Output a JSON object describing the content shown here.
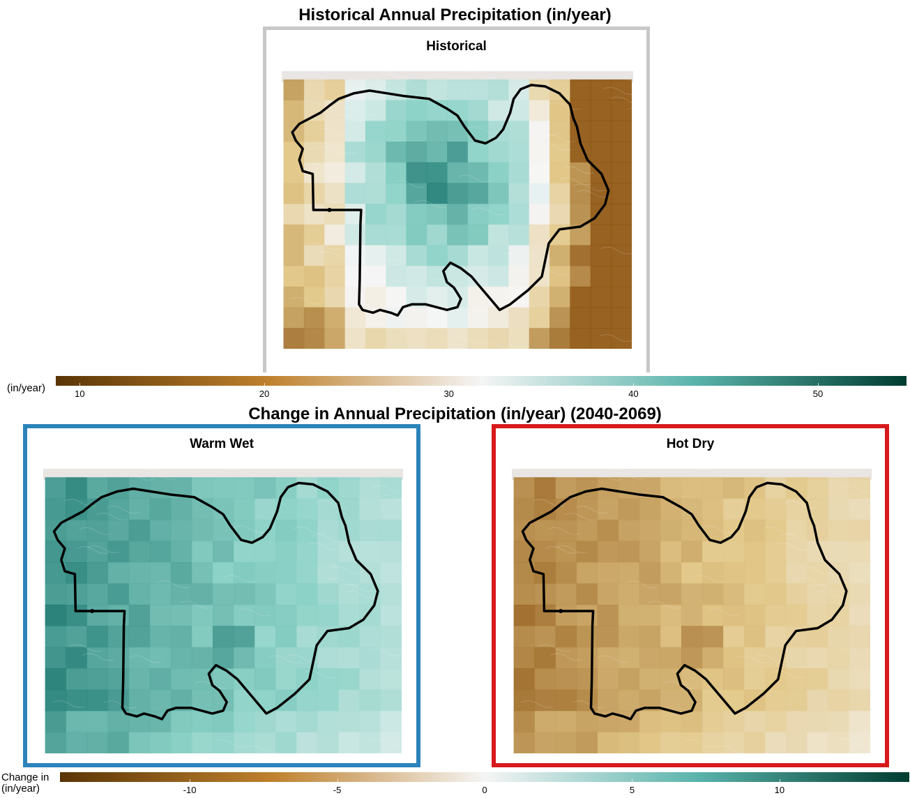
{
  "historical": {
    "title": "Historical Annual Precipitation (in/year)",
    "panel_label": "Historical",
    "frame_color": "#c8c8c8"
  },
  "historical_legend": {
    "label": "(in/year)",
    "ticks": [
      "10",
      "20",
      "30",
      "40",
      "50"
    ],
    "range": [
      8.7,
      54.8
    ],
    "colors": [
      "#5a3505",
      "#bf812d",
      "#f5f5f5",
      "#5ab4ac",
      "#003c30"
    ]
  },
  "change": {
    "title": "Change in Annual Precipitation (in/year) (2040-2069)",
    "warm_wet": {
      "label": "Warm Wet",
      "frame_color": "#2b83ba"
    },
    "hot_dry": {
      "label": "Hot Dry",
      "frame_color": "#d7191c"
    }
  },
  "change_legend": {
    "label_line1": "Change in",
    "label_line2": "(in/year)",
    "ticks": [
      "-10",
      "-5",
      "0",
      "5",
      "10"
    ],
    "range": [
      -14.4,
      14.4
    ],
    "colors": [
      "#5a3505",
      "#bf812d",
      "#f5f5f5",
      "#5ab4ac",
      "#003c30"
    ]
  },
  "colors": {
    "teal": "#5ab4ac",
    "brown": "#bf812d",
    "boundary": "#000000"
  }
}
